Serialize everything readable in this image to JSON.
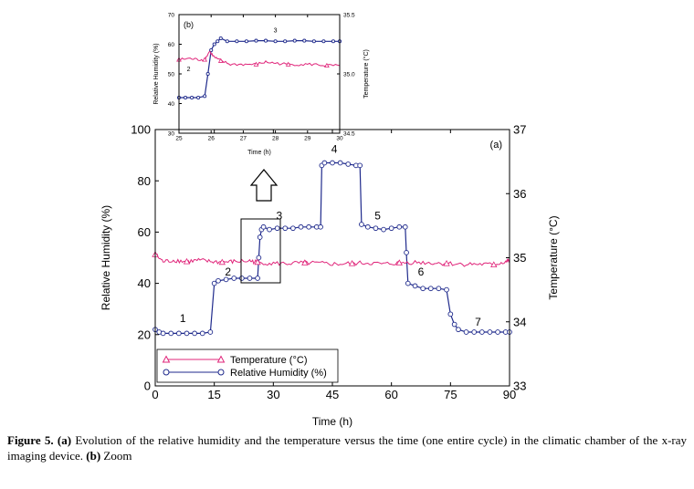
{
  "caption": {
    "label": "Figure 5.",
    "tag_a": "(a)",
    "text_a": "Evolution of the relative humidity and the temperature versus the time (one entire cycle) in the climatic chamber of the x-ray imaging device.",
    "tag_b": "(b)",
    "text_b": "Zoom"
  },
  "colors": {
    "humidity": "#1f2a8c",
    "temperature": "#e0257a",
    "frame": "#000000"
  },
  "chart_data": [
    {
      "id": "main",
      "type": "line",
      "panel_label": "(a)",
      "xlabel": "Time (h)",
      "ylabel": "Relative Humidity (%)",
      "y2label": "Temperature (°C)",
      "xlim": [
        0,
        90
      ],
      "ylim": [
        0,
        100
      ],
      "y2lim": [
        33,
        37
      ],
      "xticks": [
        0,
        15,
        30,
        45,
        60,
        75,
        90
      ],
      "yticks": [
        0,
        20,
        40,
        60,
        80,
        100
      ],
      "y2ticks": [
        33,
        34,
        35,
        36,
        37
      ],
      "legend": {
        "placement": "bottom-left",
        "entries": [
          "Temperature (°C)",
          "Relative Humidity (%)"
        ]
      },
      "series": [
        {
          "name": "Relative Humidity (%)",
          "axis": "left",
          "marker": "circle",
          "points": [
            [
              0,
              22
            ],
            [
              1,
              21
            ],
            [
              2,
              20.5
            ],
            [
              4,
              20.5
            ],
            [
              6,
              20.5
            ],
            [
              8,
              20.5
            ],
            [
              10,
              20.5
            ],
            [
              12,
              20.5
            ],
            [
              14,
              21
            ],
            [
              15,
              40
            ],
            [
              16,
              41
            ],
            [
              18,
              41.5
            ],
            [
              20,
              42
            ],
            [
              22,
              42
            ],
            [
              24,
              42
            ],
            [
              26,
              42
            ],
            [
              26.3,
              50
            ],
            [
              26.6,
              58
            ],
            [
              27,
              61
            ],
            [
              27.5,
              62
            ],
            [
              29,
              61
            ],
            [
              31,
              61.5
            ],
            [
              33,
              61.5
            ],
            [
              35,
              61.5
            ],
            [
              37,
              62
            ],
            [
              39,
              62
            ],
            [
              41,
              62
            ],
            [
              42,
              62
            ],
            [
              42.3,
              86
            ],
            [
              43,
              87
            ],
            [
              45,
              87
            ],
            [
              47,
              87
            ],
            [
              49,
              86.5
            ],
            [
              51,
              86
            ],
            [
              52,
              86
            ],
            [
              52.4,
              63
            ],
            [
              54,
              62
            ],
            [
              56,
              61.5
            ],
            [
              58,
              61
            ],
            [
              60,
              61.5
            ],
            [
              62,
              62
            ],
            [
              63.5,
              62
            ],
            [
              63.8,
              52
            ],
            [
              64.2,
              40
            ],
            [
              66,
              39
            ],
            [
              68,
              38
            ],
            [
              70,
              38
            ],
            [
              72,
              38
            ],
            [
              74,
              37.5
            ],
            [
              75,
              28
            ],
            [
              76,
              24
            ],
            [
              77,
              22
            ],
            [
              79,
              21
            ],
            [
              81,
              21
            ],
            [
              83,
              21
            ],
            [
              85,
              21
            ],
            [
              87,
              21
            ],
            [
              89,
              21
            ],
            [
              90,
              21
            ]
          ]
        },
        {
          "name": "Temperature (°C)",
          "axis": "right",
          "marker": "triangle",
          "points": [
            [
              0,
              35.05
            ],
            [
              2,
              34.94
            ],
            [
              5,
              34.96
            ],
            [
              8,
              34.94
            ],
            [
              11,
              34.96
            ],
            [
              14,
              34.94
            ],
            [
              17,
              34.93
            ],
            [
              20,
              34.94
            ],
            [
              24,
              34.95
            ],
            [
              26,
              34.93
            ],
            [
              30,
              34.91
            ],
            [
              34,
              34.91
            ],
            [
              38,
              34.92
            ],
            [
              42,
              34.91
            ],
            [
              46,
              34.9
            ],
            [
              50,
              34.91
            ],
            [
              54,
              34.92
            ],
            [
              58,
              34.9
            ],
            [
              62,
              34.92
            ],
            [
              66,
              34.93
            ],
            [
              70,
              34.92
            ],
            [
              74,
              34.91
            ],
            [
              78,
              34.9
            ],
            [
              82,
              34.9
            ],
            [
              86,
              34.89
            ],
            [
              89,
              34.94
            ],
            [
              90,
              34.95
            ]
          ]
        }
      ],
      "annotations": [
        {
          "text": "1",
          "x": 7,
          "y": 25
        },
        {
          "text": "2",
          "x": 18.5,
          "y": 43
        },
        {
          "text": "3",
          "x": 31.5,
          "y": 65
        },
        {
          "text": "4",
          "x": 45.5,
          "y": 91
        },
        {
          "text": "5",
          "x": 56.5,
          "y": 65
        },
        {
          "text": "6",
          "x": 67.5,
          "y": 43
        },
        {
          "text": "7",
          "x": 82,
          "y": 23.5
        }
      ]
    },
    {
      "id": "inset",
      "type": "line",
      "panel_label": "(b)",
      "xlabel": "Time (h)",
      "ylabel": "Relative Humidity (%)",
      "y2label": "Temperature (°C)",
      "xlim": [
        25,
        30
      ],
      "ylim": [
        30,
        70
      ],
      "y2lim": [
        34.5,
        35.5
      ],
      "xticks": [
        25,
        26,
        27,
        28,
        29,
        30
      ],
      "yticks": [
        30,
        40,
        50,
        60,
        70
      ],
      "y2ticks": [
        34.5,
        35.0,
        35.5
      ],
      "series": [
        {
          "name": "Relative Humidity (%)",
          "axis": "left",
          "marker": "circle",
          "points": [
            [
              25,
              42
            ],
            [
              25.2,
              42
            ],
            [
              25.4,
              42
            ],
            [
              25.6,
              42
            ],
            [
              25.8,
              42.5
            ],
            [
              25.9,
              50
            ],
            [
              26,
              58
            ],
            [
              26.1,
              60
            ],
            [
              26.2,
              61
            ],
            [
              26.3,
              62
            ],
            [
              26.5,
              61
            ],
            [
              26.8,
              61
            ],
            [
              27.1,
              61
            ],
            [
              27.4,
              61.2
            ],
            [
              27.7,
              61.2
            ],
            [
              28,
              61
            ],
            [
              28.3,
              61
            ],
            [
              28.6,
              61.2
            ],
            [
              28.9,
              61.2
            ],
            [
              29.2,
              61
            ],
            [
              29.5,
              61
            ],
            [
              29.8,
              61
            ],
            [
              30,
              61
            ]
          ]
        },
        {
          "name": "Temperature (°C)",
          "axis": "right",
          "marker": "triangle",
          "points": [
            [
              25,
              35.12
            ],
            [
              25.3,
              35.13
            ],
            [
              25.6,
              35.12
            ],
            [
              25.8,
              35.12
            ],
            [
              25.95,
              35.19
            ],
            [
              26.1,
              35.14
            ],
            [
              26.3,
              35.11
            ],
            [
              26.6,
              35.08
            ],
            [
              27,
              35.08
            ],
            [
              27.4,
              35.08
            ],
            [
              27.7,
              35.1
            ],
            [
              28,
              35.09
            ],
            [
              28.4,
              35.08
            ],
            [
              28.8,
              35.08
            ],
            [
              29.2,
              35.08
            ],
            [
              29.6,
              35.07
            ],
            [
              30,
              35.07
            ]
          ]
        }
      ],
      "annotations": [
        {
          "text": "2",
          "x": 25.3,
          "y": 51
        },
        {
          "text": "3",
          "x": 28,
          "y": 64
        }
      ]
    }
  ]
}
